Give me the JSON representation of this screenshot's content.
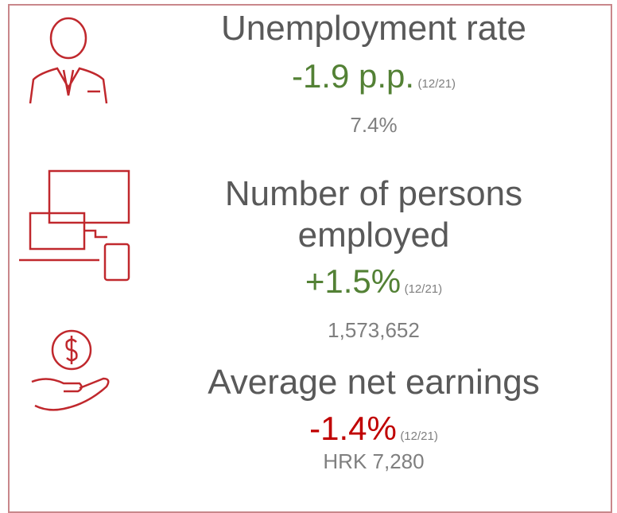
{
  "items": [
    {
      "title": "Unemployment rate",
      "change": "-1.9 p.p.",
      "period": "(12/21)",
      "value": "7.4%"
    },
    {
      "title": "Number of persons employed",
      "change": "+1.5%",
      "period": "(12/21)",
      "value": "1,573,652"
    },
    {
      "title": "Average net earnings",
      "change": "-1.4%",
      "period": "(12/21)",
      "value": "HRK 7,280"
    }
  ]
}
